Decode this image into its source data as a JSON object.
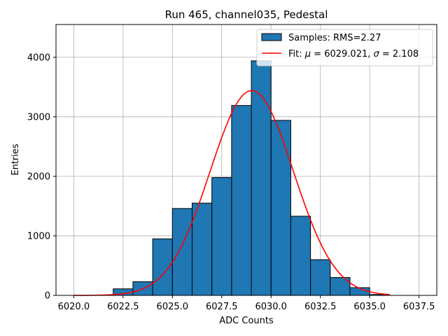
{
  "chart_data": {
    "type": "bar",
    "title": "Run 465, channel035, Pedestal",
    "xlabel": "ADC Counts",
    "ylabel": "Entries",
    "xlim": [
      6019.1,
      6038.4
    ],
    "ylim": [
      0,
      4550
    ],
    "grid": true,
    "legend_position": "top-right",
    "x_ticks": [
      6020.0,
      6022.5,
      6025.0,
      6027.5,
      6030.0,
      6032.5,
      6035.0,
      6037.5
    ],
    "x_tick_labels": [
      "6020.0",
      "6022.5",
      "6025.0",
      "6027.5",
      "6030.0",
      "6032.5",
      "6035.0",
      "6037.5"
    ],
    "y_ticks": [
      0,
      1000,
      2000,
      3000,
      4000
    ],
    "y_tick_labels": [
      "0",
      "1000",
      "2000",
      "3000",
      "4000"
    ],
    "histogram": {
      "name": "Samples: RMS=2.27",
      "color": "#1f77b4",
      "edge_color": "#000000",
      "bins": [
        {
          "left": 6022.0,
          "right": 6023.0,
          "value": 110
        },
        {
          "left": 6023.0,
          "right": 6024.0,
          "value": 230
        },
        {
          "left": 6024.0,
          "right": 6025.0,
          "value": 950
        },
        {
          "left": 6025.0,
          "right": 6026.0,
          "value": 1460
        },
        {
          "left": 6026.0,
          "right": 6027.0,
          "value": 1550
        },
        {
          "left": 6027.0,
          "right": 6028.0,
          "value": 1980
        },
        {
          "left": 6028.0,
          "right": 6029.0,
          "value": 3190
        },
        {
          "left": 6029.0,
          "right": 6030.0,
          "value": 3940
        },
        {
          "left": 6030.0,
          "right": 6031.0,
          "value": 2940
        },
        {
          "left": 6031.0,
          "right": 6032.0,
          "value": 1330
        },
        {
          "left": 6032.0,
          "right": 6033.0,
          "value": 600
        },
        {
          "left": 6033.0,
          "right": 6034.0,
          "value": 300
        },
        {
          "left": 6034.0,
          "right": 6035.0,
          "value": 130
        },
        {
          "left": 6035.0,
          "right": 6036.0,
          "value": 15
        }
      ]
    },
    "fit": {
      "name_prefix": "Fit: ",
      "name_mu": "μ",
      "name_middle": " = 6029.021, ",
      "name_sigma": "σ",
      "name_suffix": " = 2.108",
      "color": "#ff0000",
      "mu": 6029.021,
      "sigma": 2.108,
      "amplitude": 3440,
      "x_range": [
        6020.0,
        6036.0
      ]
    }
  }
}
